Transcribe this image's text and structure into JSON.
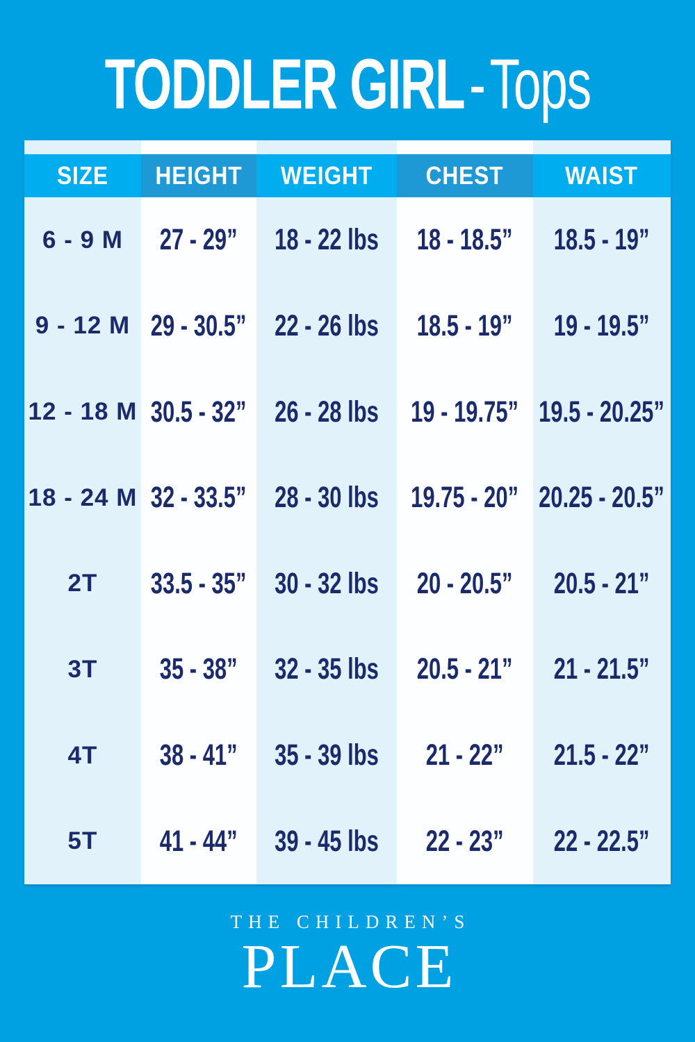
{
  "title": {
    "main": "TODDLER GIRL",
    "dash": "-",
    "category": "Tops"
  },
  "chart_data": {
    "type": "table",
    "title": "TODDLER GIRL - Tops",
    "columns": [
      "SIZE",
      "HEIGHT",
      "WEIGHT",
      "CHEST",
      "WAIST"
    ],
    "rows": [
      [
        "6 - 9 M",
        "27 - 29”",
        "18 - 22 lbs",
        "18 - 18.5”",
        "18.5 - 19”"
      ],
      [
        "9 - 12 M",
        "29 - 30.5”",
        "22 - 26 lbs",
        "18.5 - 19”",
        "19 - 19.5”"
      ],
      [
        "12 - 18 M",
        "30.5 - 32”",
        "26 - 28 lbs",
        "19 - 19.75”",
        "19.5 - 20.25”"
      ],
      [
        "18 - 24 M",
        "32 - 33.5”",
        "28 - 30 lbs",
        "19.75 - 20”",
        "20.25 - 20.5”"
      ],
      [
        "2T",
        "33.5 - 35”",
        "30 - 32 lbs",
        "20 - 20.5”",
        "20.5 - 21”"
      ],
      [
        "3T",
        "35 - 38”",
        "32 - 35 lbs",
        "20.5 - 21”",
        "21 - 21.5”"
      ],
      [
        "4T",
        "38 - 41”",
        "35 - 39 lbs",
        "21 - 22”",
        "21.5 - 22”"
      ],
      [
        "5T",
        "41 - 44”",
        "39 - 45 lbs",
        "22 - 23”",
        "22 - 22.5”"
      ]
    ]
  },
  "brand": {
    "line1": "THE CHILDREN’S",
    "line2": "PLACE"
  },
  "colors": {
    "background": "#00A1E3",
    "header_bright": "#00AEEF",
    "header_dark": "#1E99D5",
    "column_pale": "#E2F2FB",
    "column_white": "#FDFEFF",
    "data_text": "#1B2A6B",
    "header_text": "#FFFFFF"
  }
}
